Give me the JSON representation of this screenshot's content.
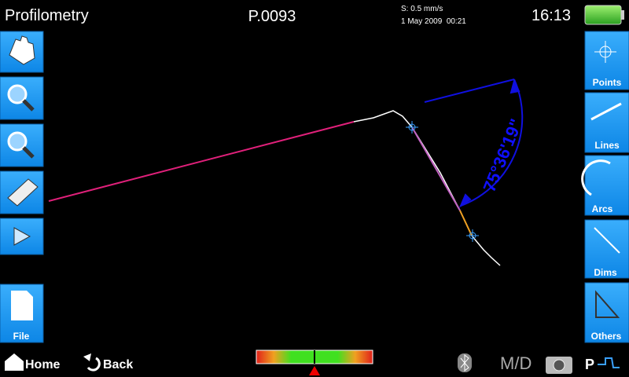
{
  "header": {
    "title": "Profilometry",
    "program": "P.0093",
    "speed": "S: 0.5 mm/s",
    "datetime": "1 May 2009  00:21",
    "time": "16:13"
  },
  "left_buttons": {
    "file": "File"
  },
  "right_buttons": [
    "Points",
    "Lines",
    "Arcs",
    "Dims",
    "Others"
  ],
  "measurement": {
    "angle": "75°36'19\""
  },
  "footer": {
    "home": "Home",
    "back": "Back",
    "mode": "M/D",
    "probe": "P"
  }
}
